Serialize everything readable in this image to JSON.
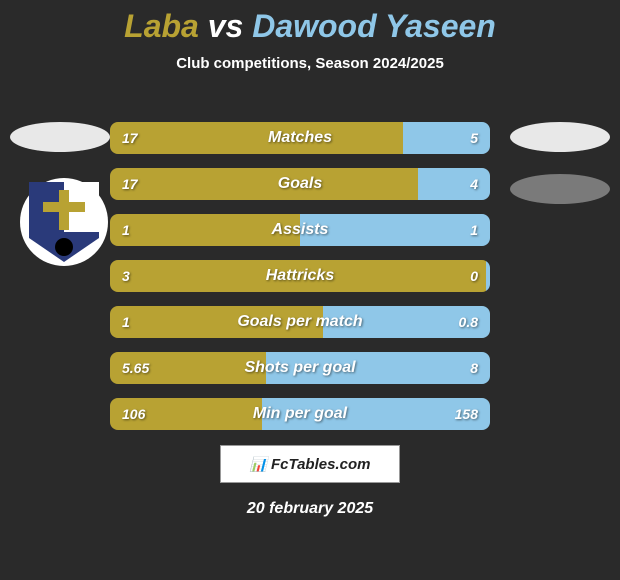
{
  "title": {
    "left": "Laba",
    "vs": "vs",
    "right": "Dawood Yaseen"
  },
  "subtitle": "Club competitions, Season 2024/2025",
  "colors": {
    "left": "#b8a233",
    "right": "#8fc7e8",
    "background": "#2a2a2a",
    "text": "#ffffff"
  },
  "stats": [
    {
      "label": "Matches",
      "left_val": "17",
      "right_val": "5",
      "left_pct": 77,
      "right_pct": 23
    },
    {
      "label": "Goals",
      "left_val": "17",
      "right_val": "4",
      "left_pct": 81,
      "right_pct": 19
    },
    {
      "label": "Assists",
      "left_val": "1",
      "right_val": "1",
      "left_pct": 50,
      "right_pct": 50
    },
    {
      "label": "Hattricks",
      "left_val": "3",
      "right_val": "0",
      "left_pct": 99,
      "right_pct": 1
    },
    {
      "label": "Goals per match",
      "left_val": "1",
      "right_val": "0.8",
      "left_pct": 56,
      "right_pct": 44
    },
    {
      "label": "Shots per goal",
      "left_val": "5.65",
      "right_val": "8",
      "left_pct": 41,
      "right_pct": 59
    },
    {
      "label": "Min per goal",
      "left_val": "106",
      "right_val": "158",
      "left_pct": 40,
      "right_pct": 60
    }
  ],
  "footer": {
    "brand": "FcTables.com",
    "date": "20 february 2025"
  }
}
